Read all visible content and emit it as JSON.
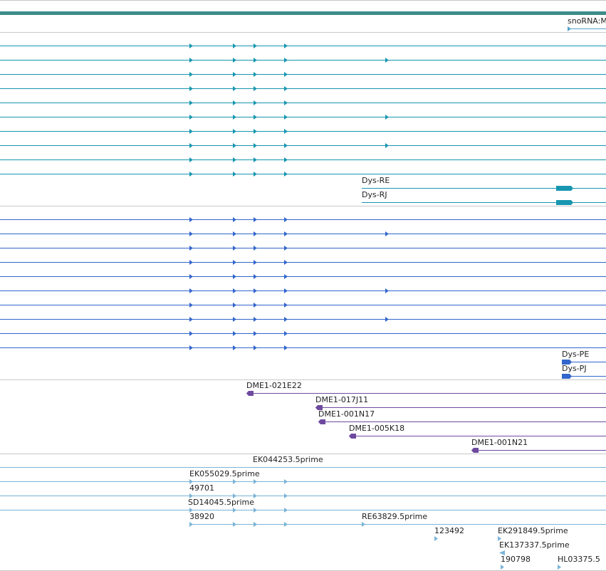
{
  "colors": {
    "top_bar": "#3d8c8a",
    "separator": "#c8c8c8",
    "ncrna": "#55a0c8",
    "mrna_teal": "#1896b0",
    "cds_blue": "#3366cc",
    "bac_purple": "#6e4a9e",
    "est_light": "#7ab4d8"
  },
  "tracks": {
    "ncrna": {
      "features": [
        {
          "label": "snoRNA:M",
          "start": 797,
          "end": 851,
          "strand": "+",
          "label_dx": 0,
          "segments": []
        }
      ]
    },
    "transcripts": {
      "features": [
        {
          "label": "",
          "start": 0,
          "end": 851,
          "strand": "+",
          "label_dx": 0,
          "arrows": [
            266,
            327,
            356,
            399
          ],
          "segments": []
        },
        {
          "label": "",
          "start": 0,
          "end": 851,
          "strand": "+",
          "label_dx": 0,
          "arrows": [
            266,
            327,
            356,
            399,
            541
          ],
          "segments": []
        },
        {
          "label": "",
          "start": 0,
          "end": 851,
          "strand": "+",
          "label_dx": 0,
          "arrows": [
            266,
            327,
            356,
            399
          ],
          "segments": []
        },
        {
          "label": "",
          "start": 0,
          "end": 851,
          "strand": "+",
          "label_dx": 0,
          "arrows": [
            266,
            327,
            356,
            399
          ],
          "segments": []
        },
        {
          "label": "",
          "start": 0,
          "end": 851,
          "strand": "+",
          "label_dx": 0,
          "arrows": [
            266,
            327,
            356,
            399
          ],
          "segments": []
        },
        {
          "label": "",
          "start": 0,
          "end": 851,
          "strand": "+",
          "label_dx": 0,
          "arrows": [
            266,
            327,
            356,
            399,
            541
          ],
          "segments": []
        },
        {
          "label": "",
          "start": 0,
          "end": 851,
          "strand": "+",
          "label_dx": 0,
          "arrows": [
            266,
            327,
            356,
            399
          ],
          "segments": []
        },
        {
          "label": "",
          "start": 0,
          "end": 851,
          "strand": "+",
          "label_dx": 0,
          "arrows": [
            266,
            327,
            356,
            399,
            541
          ],
          "segments": []
        },
        {
          "label": "",
          "start": 0,
          "end": 851,
          "strand": "+",
          "label_dx": 0,
          "arrows": [
            266,
            327,
            356,
            399
          ],
          "segments": []
        },
        {
          "label": "",
          "start": 0,
          "end": 851,
          "strand": "+",
          "label_dx": 0,
          "arrows": [
            266,
            327,
            356,
            399
          ],
          "segments": []
        },
        {
          "label": "Dys-RE",
          "start": 508,
          "end": 851,
          "strand": "+",
          "label_dx": 0,
          "arrows": [],
          "segments": [
            [
              781,
              805
            ]
          ]
        },
        {
          "label": "Dys-RJ",
          "start": 508,
          "end": 851,
          "strand": "+",
          "label_dx": 0,
          "arrows": [],
          "segments": [
            [
              781,
              805
            ]
          ]
        }
      ]
    },
    "proteins": {
      "features": [
        {
          "label": "",
          "start": 0,
          "end": 851,
          "strand": "+",
          "label_dx": 0,
          "arrows": [
            266,
            327,
            356,
            399
          ],
          "segments": []
        },
        {
          "label": "",
          "start": 0,
          "end": 851,
          "strand": "+",
          "label_dx": 0,
          "arrows": [
            266,
            327,
            356,
            399,
            541
          ],
          "segments": []
        },
        {
          "label": "",
          "start": 0,
          "end": 851,
          "strand": "+",
          "label_dx": 0,
          "arrows": [
            266,
            327,
            356,
            399
          ],
          "segments": []
        },
        {
          "label": "",
          "start": 0,
          "end": 851,
          "strand": "+",
          "label_dx": 0,
          "arrows": [
            266,
            327,
            356,
            399
          ],
          "segments": []
        },
        {
          "label": "",
          "start": 0,
          "end": 851,
          "strand": "+",
          "label_dx": 0,
          "arrows": [
            266,
            327,
            356,
            399
          ],
          "segments": []
        },
        {
          "label": "",
          "start": 0,
          "end": 851,
          "strand": "+",
          "label_dx": 0,
          "arrows": [
            266,
            327,
            356,
            399,
            541
          ],
          "segments": []
        },
        {
          "label": "",
          "start": 0,
          "end": 851,
          "strand": "+",
          "label_dx": 0,
          "arrows": [
            266,
            327,
            356,
            399
          ],
          "segments": []
        },
        {
          "label": "",
          "start": 0,
          "end": 851,
          "strand": "+",
          "label_dx": 0,
          "arrows": [
            266,
            327,
            356,
            399,
            541
          ],
          "segments": []
        },
        {
          "label": "",
          "start": 0,
          "end": 851,
          "strand": "+",
          "label_dx": 0,
          "arrows": [
            266,
            327,
            356,
            399
          ],
          "segments": []
        },
        {
          "label": "",
          "start": 0,
          "end": 851,
          "strand": "+",
          "label_dx": 0,
          "arrows": [
            266,
            327,
            356,
            399
          ],
          "segments": []
        },
        {
          "label": "Dys-PE",
          "start": 789,
          "end": 851,
          "strand": "+",
          "label_dx": 0,
          "arrows": [],
          "segments": [
            [
              789,
              803
            ]
          ]
        },
        {
          "label": "Dys-PJ",
          "start": 789,
          "end": 851,
          "strand": "+",
          "label_dx": 0,
          "arrows": [],
          "segments": [
            [
              789,
              803
            ]
          ]
        }
      ]
    },
    "bacs": {
      "features": [
        {
          "label": "DME1-021E22",
          "start": 346,
          "end": 851,
          "strand": "-",
          "label_dx": 0,
          "arrows": [],
          "segments": [
            [
              346,
              356
            ]
          ]
        },
        {
          "label": "DME1-017J11",
          "start": 443,
          "end": 851,
          "strand": "-",
          "label_dx": 0,
          "arrows": [],
          "segments": [
            [
              443,
              453
            ]
          ]
        },
        {
          "label": "DME1-001N17",
          "start": 447,
          "end": 851,
          "strand": "-",
          "label_dx": 0,
          "arrows": [],
          "segments": [
            [
              447,
              457
            ]
          ]
        },
        {
          "label": "DME1-005K18",
          "start": 490,
          "end": 851,
          "strand": "-",
          "label_dx": 0,
          "arrows": [],
          "segments": [
            [
              490,
              500
            ]
          ]
        },
        {
          "label": "DME1-001N21",
          "start": 662,
          "end": 851,
          "strand": "-",
          "label_dx": 0,
          "arrows": [],
          "segments": [
            [
              662,
              672
            ]
          ]
        }
      ]
    },
    "ests": {
      "features": [
        {
          "label": "EK044253.5prime",
          "start": 0,
          "end": 851,
          "strand": "+",
          "label_dx": 355,
          "arrows": [],
          "segments": []
        },
        {
          "label": "EK055029.5prime",
          "start": 0,
          "end": 851,
          "strand": "+",
          "label_dx": 266,
          "arrows": [
            266,
            327,
            356,
            399
          ],
          "segments": []
        },
        {
          "label": "49701",
          "start": 0,
          "end": 851,
          "strand": "+",
          "label_dx": 266,
          "arrows": [
            266,
            327,
            356,
            399
          ],
          "segments": []
        },
        {
          "label": "SD14045.5prime",
          "start": 0,
          "end": 851,
          "strand": "+",
          "label_dx": 264,
          "arrows": [
            266,
            327,
            356,
            399
          ],
          "segments": []
        },
        {
          "label": "38920",
          "start": 266,
          "end": 356,
          "strand": "+",
          "label_dx": 0,
          "arrows": [
            266,
            327,
            356
          ],
          "segments": []
        },
        {
          "label": "RE63829.5prime",
          "start": 508,
          "end": 789,
          "strand": "+",
          "label_dx": 0,
          "arrows": [
            508
          ],
          "segments": []
        },
        {
          "label": "",
          "start": 356,
          "end": 851,
          "strand": "+",
          "label_dx": 0,
          "arrows": [
            356,
            399
          ],
          "segments": []
        },
        {
          "label": "123492",
          "start": 610,
          "end": 614,
          "strand": "+",
          "label_dx": 0,
          "arrows": [
            610
          ],
          "segments": []
        },
        {
          "label": "EK291849.5prime",
          "start": 699,
          "end": 705,
          "strand": "+",
          "label_dx": 0,
          "arrows": [
            699
          ],
          "segments": []
        },
        {
          "label": "EK137337.5prime",
          "start": 701,
          "end": 709,
          "strand": "-",
          "label_dx": 0,
          "arrows": [],
          "segments": []
        },
        {
          "label": "190798",
          "start": 703,
          "end": 711,
          "strand": "+",
          "label_dx": 0,
          "arrows": [
            703
          ],
          "segments": []
        },
        {
          "label": "HL03375.5",
          "start": 783,
          "end": 791,
          "strand": "+",
          "label_dx": 0,
          "arrows": [
            783
          ],
          "segments": []
        }
      ]
    }
  }
}
